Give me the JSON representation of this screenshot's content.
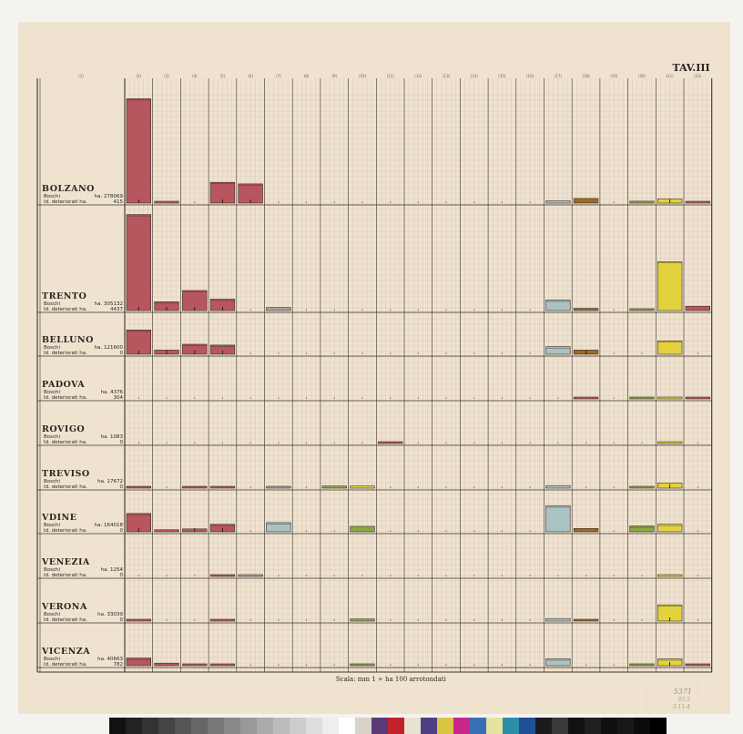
{
  "header": {
    "plate_title": "TAV.III"
  },
  "columns": [
    "(1)",
    "(2)",
    "(3)",
    "(4)",
    "(5)",
    "(6)",
    "(7)",
    "(8)",
    "(9)",
    "(10)",
    "(11)",
    "(12)",
    "(13)",
    "(14)",
    "(15)",
    "(16)",
    "(17)",
    "(18)",
    "(19)",
    "(20)",
    "(21)",
    "(22)"
  ],
  "footer": {
    "scale_note": "Scala: mm 1 ÷ ha 100 arrotondati"
  },
  "archive_mark": {
    "lines": [
      "5371",
      "65.5",
      "3-11-4"
    ]
  },
  "colors": {
    "red": "#b8565e",
    "blue": "#a9c3c3",
    "brown": "#9b6a26",
    "olive": "#8ca842",
    "yellow": "#e4d23c",
    "gray": "#a9a39a",
    "sheet": "#efe3d0",
    "grid": "#d9c8b6",
    "line": "#3a342e"
  },
  "chart_data": {
    "type": "bar",
    "title": "TAV.III",
    "unit_note": "Scala: mm 1 ÷ ha 100 arrotondati",
    "categories": [
      "(2)",
      "(3)",
      "(4)",
      "(5)",
      "(6)",
      "(7)",
      "(8)",
      "(9)",
      "(10)",
      "(11)",
      "(12)",
      "(13)",
      "(14)",
      "(15)",
      "(16)",
      "(17)",
      "(18)",
      "(19)",
      "(20)",
      "(21)",
      "(22)"
    ],
    "ymax": 14000,
    "series": [
      {
        "name": "BOLZANO",
        "boschi_label": "Boschi",
        "boschi_ha": "ha. 278069",
        "det_label": "Id. deteriorati ha.",
        "det_ha": "415",
        "ymax": 14000,
        "values": [
          13600,
          20,
          0,
          2700,
          2500,
          0,
          0,
          0,
          0,
          0,
          0,
          0,
          0,
          0,
          0,
          300,
          600,
          0,
          250,
          550,
          200
        ],
        "colors": [
          "red",
          "red",
          "red",
          "red",
          "red",
          "red",
          "red",
          "red",
          "red",
          "red",
          "red",
          "red",
          "red",
          "red",
          "red",
          "blue",
          "brown",
          "olive",
          "olive",
          "yellow",
          "red"
        ],
        "markers": [
          1,
          0,
          0,
          1,
          1,
          0,
          0,
          0,
          0,
          0,
          0,
          0,
          0,
          0,
          0,
          0,
          0,
          0,
          0,
          1,
          0
        ]
      },
      {
        "name": "TRENTO",
        "boschi_label": "Boschi",
        "boschi_ha": "ha. 305132",
        "det_label": "Id. deteriorati ha.",
        "det_ha": "4437",
        "ymax": 12000,
        "values": [
          11000,
          1000,
          2300,
          1300,
          0,
          350,
          0,
          0,
          0,
          0,
          0,
          0,
          0,
          0,
          0,
          1200,
          250,
          0,
          200,
          5600,
          500
        ],
        "colors": [
          "red",
          "red",
          "red",
          "red",
          "red",
          "gray",
          "red",
          "red",
          "red",
          "red",
          "red",
          "red",
          "red",
          "red",
          "red",
          "blue",
          "brown",
          "olive",
          "olive",
          "yellow",
          "red"
        ],
        "markers": [
          1,
          1,
          1,
          1,
          0,
          0,
          0,
          0,
          0,
          0,
          0,
          0,
          0,
          0,
          0,
          0,
          0,
          0,
          0,
          0,
          0
        ]
      },
      {
        "name": "BELLUNO",
        "boschi_label": "Boschi",
        "boschi_ha": "ha. 121600",
        "det_label": "Id. deteriorati ha.",
        "det_ha": "0",
        "ymax": 4900,
        "values": [
          2900,
          500,
          1200,
          1100,
          0,
          0,
          0,
          0,
          0,
          0,
          0,
          0,
          0,
          0,
          0,
          900,
          500,
          0,
          0,
          1600,
          0
        ],
        "colors": [
          "red",
          "red",
          "red",
          "red",
          "red",
          "red",
          "red",
          "red",
          "red",
          "red",
          "red",
          "red",
          "red",
          "red",
          "red",
          "blue",
          "brown",
          "olive",
          "olive",
          "yellow",
          "red"
        ],
        "markers": [
          1,
          1,
          1,
          1,
          0,
          0,
          0,
          0,
          0,
          0,
          0,
          0,
          0,
          0,
          0,
          0,
          1,
          0,
          0,
          0,
          0
        ]
      },
      {
        "name": "PADOVA",
        "boschi_label": "Boschi",
        "boschi_ha": "ha. 4376",
        "det_label": "Id. deteriorati ha.",
        "det_ha": "304",
        "ymax": 4900,
        "values": [
          0,
          0,
          0,
          0,
          0,
          0,
          0,
          0,
          0,
          0,
          0,
          0,
          0,
          0,
          0,
          0,
          200,
          0,
          200,
          200,
          200
        ],
        "colors": [
          "red",
          "red",
          "red",
          "red",
          "red",
          "red",
          "red",
          "red",
          "red",
          "red",
          "red",
          "red",
          "red",
          "red",
          "red",
          "blue",
          "red",
          "olive",
          "olive",
          "yellow",
          "red"
        ],
        "markers": [
          0,
          0,
          0,
          0,
          0,
          0,
          0,
          0,
          0,
          0,
          0,
          0,
          0,
          0,
          0,
          0,
          0,
          0,
          0,
          0,
          0
        ]
      },
      {
        "name": "ROVIGO",
        "boschi_label": "Boschi",
        "boschi_ha": "ha. 1083",
        "det_label": "Id. deteriorati ha.",
        "det_ha": "0",
        "ymax": 4900,
        "values": [
          0,
          0,
          0,
          0,
          0,
          0,
          0,
          0,
          0,
          200,
          0,
          0,
          0,
          0,
          0,
          0,
          0,
          0,
          0,
          200,
          0
        ],
        "colors": [
          "red",
          "red",
          "red",
          "red",
          "red",
          "red",
          "red",
          "red",
          "red",
          "red",
          "red",
          "red",
          "red",
          "red",
          "red",
          "blue",
          "brown",
          "olive",
          "olive",
          "yellow",
          "red"
        ],
        "markers": [
          0,
          0,
          0,
          0,
          0,
          0,
          0,
          0,
          0,
          0,
          0,
          0,
          0,
          0,
          0,
          0,
          0,
          0,
          0,
          0,
          0
        ]
      },
      {
        "name": "TREVISO",
        "boschi_label": "Boschi",
        "boschi_ha": "ha. 17672",
        "det_label": "Id. deteriorati ha.",
        "det_ha": "0",
        "ymax": 4900,
        "values": [
          200,
          0,
          200,
          200,
          0,
          200,
          0,
          250,
          250,
          0,
          0,
          0,
          0,
          0,
          0,
          300,
          0,
          0,
          200,
          600,
          0
        ],
        "colors": [
          "red",
          "red",
          "red",
          "red",
          "red",
          "gray",
          "red",
          "olive",
          "yellow",
          "red",
          "red",
          "red",
          "red",
          "red",
          "red",
          "blue",
          "brown",
          "olive",
          "olive",
          "yellow",
          "red"
        ],
        "markers": [
          0,
          0,
          0,
          0,
          0,
          0,
          0,
          0,
          0,
          0,
          0,
          0,
          0,
          0,
          0,
          0,
          0,
          0,
          0,
          1,
          0
        ]
      },
      {
        "name": "VDINE",
        "boschi_label": "Boschi",
        "boschi_ha": "ha. 164018",
        "det_label": "Id. deteriorati ha.",
        "det_ha": "0",
        "ymax": 4900,
        "values": [
          2200,
          250,
          350,
          900,
          0,
          1100,
          0,
          0,
          650,
          0,
          0,
          0,
          0,
          0,
          0,
          3100,
          400,
          0,
          700,
          900,
          0
        ],
        "colors": [
          "red",
          "red",
          "red",
          "red",
          "red",
          "blue",
          "red",
          "red",
          "olive",
          "red",
          "red",
          "red",
          "red",
          "red",
          "red",
          "blue",
          "brown",
          "olive",
          "olive",
          "yellow",
          "red"
        ],
        "markers": [
          1,
          0,
          1,
          1,
          0,
          0,
          0,
          0,
          0,
          0,
          0,
          0,
          0,
          0,
          0,
          0,
          0,
          0,
          0,
          0,
          0
        ]
      },
      {
        "name": "VENEZIA",
        "boschi_label": "Boschi",
        "boschi_ha": "ha. 1254",
        "det_label": "Id. deteriorati ha.",
        "det_ha": "0",
        "ymax": 4900,
        "values": [
          0,
          0,
          0,
          200,
          200,
          0,
          0,
          0,
          0,
          0,
          0,
          0,
          0,
          0,
          0,
          0,
          0,
          0,
          0,
          200,
          0
        ],
        "colors": [
          "red",
          "red",
          "red",
          "red",
          "gray",
          "red",
          "red",
          "red",
          "red",
          "red",
          "red",
          "red",
          "red",
          "red",
          "red",
          "blue",
          "brown",
          "olive",
          "olive",
          "yellow",
          "red"
        ],
        "markers": [
          0,
          0,
          0,
          0,
          0,
          0,
          0,
          0,
          0,
          0,
          0,
          0,
          0,
          0,
          0,
          0,
          0,
          0,
          0,
          0,
          0
        ]
      },
      {
        "name": "VERONA",
        "boschi_label": "Boschi",
        "boschi_ha": "ha. 33039",
        "det_label": "Id. deteriorati ha.",
        "det_ha": "0",
        "ymax": 4900,
        "values": [
          200,
          0,
          0,
          200,
          0,
          0,
          0,
          0,
          250,
          0,
          0,
          0,
          0,
          0,
          0,
          300,
          200,
          0,
          0,
          1900,
          0
        ],
        "colors": [
          "red",
          "red",
          "red",
          "red",
          "red",
          "red",
          "red",
          "red",
          "olive",
          "red",
          "red",
          "red",
          "red",
          "red",
          "red",
          "blue",
          "brown",
          "olive",
          "olive",
          "yellow",
          "red"
        ],
        "markers": [
          0,
          0,
          0,
          0,
          0,
          0,
          0,
          0,
          0,
          0,
          0,
          0,
          0,
          0,
          0,
          0,
          0,
          0,
          0,
          1,
          0
        ]
      },
      {
        "name": "VICENZA",
        "boschi_label": "Boschi",
        "boschi_ha": "ha. 40663",
        "det_label": "Id. deteriorati ha.",
        "det_ha": "782",
        "ymax": 4900,
        "values": [
          900,
          300,
          200,
          200,
          0,
          0,
          0,
          0,
          200,
          0,
          0,
          0,
          0,
          0,
          0,
          800,
          0,
          0,
          200,
          800,
          200
        ],
        "colors": [
          "red",
          "red",
          "red",
          "red",
          "red",
          "red",
          "red",
          "red",
          "olive",
          "yellow",
          "red",
          "red",
          "red",
          "red",
          "red",
          "blue",
          "brown",
          "olive",
          "olive",
          "yellow",
          "red"
        ],
        "markers": [
          0,
          0,
          0,
          0,
          0,
          0,
          0,
          0,
          0,
          0,
          0,
          0,
          0,
          0,
          0,
          0,
          0,
          0,
          0,
          1,
          0
        ]
      }
    ]
  }
}
